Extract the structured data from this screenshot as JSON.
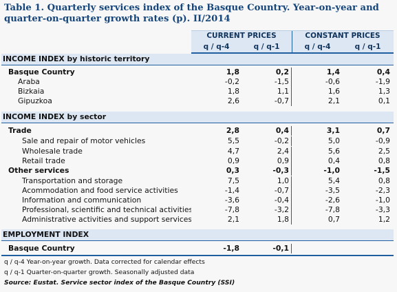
{
  "title": {
    "line1": "Table 1. Quarterly services index of the Basque Country. Year-on-year and",
    "line2": "quarter-on-quarter growth rates (p). II/2014"
  },
  "header": {
    "current_prices": "CURRENT PRICES",
    "constant_prices": "CONSTANT PRICES",
    "col_yoy": "q / q-4",
    "col_qoq": "q / q-1"
  },
  "sections": {
    "territory": {
      "title": "INCOME INDEX by historic territory",
      "rows": [
        {
          "label": "Basque Country",
          "v": [
            "1,8",
            "0,2",
            "1,4",
            "0,4"
          ]
        },
        {
          "label": "Araba",
          "v": [
            "-0,2",
            "-1,5",
            "-0,6",
            "-1,9"
          ]
        },
        {
          "label": "Bizkaia",
          "v": [
            "1,8",
            "1,1",
            "1,6",
            "1,3"
          ]
        },
        {
          "label": "Gipuzkoa",
          "v": [
            "2,6",
            "-0,7",
            "2,1",
            "0,1"
          ]
        }
      ]
    },
    "sector": {
      "title": "INCOME INDEX by sector",
      "rows": [
        {
          "label": "Trade",
          "v": [
            "2,8",
            "0,4",
            "3,1",
            "0,7"
          ]
        },
        {
          "label": "Sale and repair of motor vehicles",
          "v": [
            "5,5",
            "-0,2",
            "5,0",
            "-0,9"
          ]
        },
        {
          "label": "Wholesale trade",
          "v": [
            "4,7",
            "2,4",
            "5,6",
            "2,5"
          ]
        },
        {
          "label": "Retail trade",
          "v": [
            "0,9",
            "0,9",
            "0,4",
            "0,8"
          ]
        },
        {
          "label": "Other services",
          "v": [
            "0,3",
            "-0,3",
            "-1,0",
            "-1,5"
          ]
        },
        {
          "label": "Transportation and storage",
          "v": [
            "7,5",
            "1,0",
            "5,4",
            "0,8"
          ]
        },
        {
          "label": "Acommodation and food service activities",
          "v": [
            "-1,4",
            "-0,7",
            "-3,5",
            "-2,3"
          ]
        },
        {
          "label": "Information and communication",
          "v": [
            "-3,6",
            "-0,4",
            "-2,6",
            "-1,0"
          ]
        },
        {
          "label": "Professional, scientific and technical activities",
          "v": [
            "-7,8",
            "-3,2",
            "-7,8",
            "-3,3"
          ]
        },
        {
          "label": "Administrative activities and support services",
          "v": [
            "2,1",
            "1,8",
            "0,7",
            "1,2"
          ]
        }
      ]
    },
    "employment": {
      "title": "EMPLOYMENT INDEX",
      "rows": [
        {
          "label": "Basque Country",
          "v": [
            "-1,8",
            "-0,1",
            "",
            ""
          ]
        }
      ]
    }
  },
  "notes": {
    "yoy": "q / q-4 Year-on-year growth. Data corrected for calendar effects",
    "qoq": "q / q-1 Quarter-on-quarter growth. Seasonally adjusted data",
    "source": "Source: Eustat. Service sector index of the Basque Country (SSI)"
  }
}
